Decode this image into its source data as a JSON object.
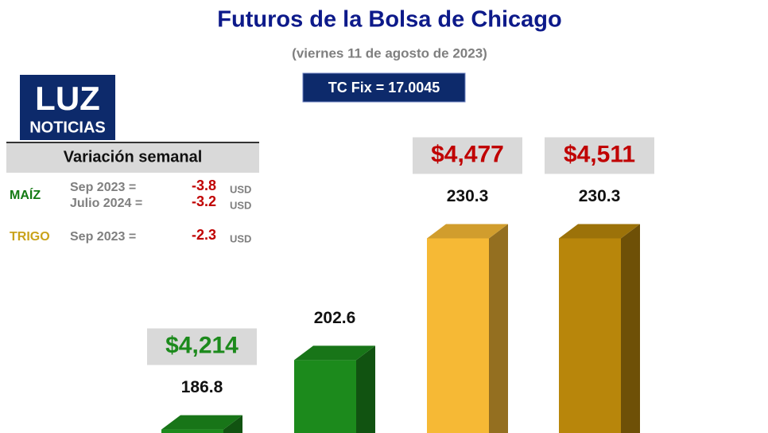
{
  "chart_data": {
    "type": "bar3d",
    "title": "Futuros de la Bolsa de Chicago",
    "subtitle": "(viernes 11 de agosto de 2023)",
    "exchange_rate": "TC Fix = 17.0045",
    "logo": {
      "top": "LUZ",
      "bottom": "NOTICIAS"
    },
    "weekly_variation": {
      "title": "Variación semanal",
      "rows": [
        {
          "crop": "MAÍZ",
          "crop_color": "#137a13",
          "contract": "Sep 2023 =",
          "value": -3.8,
          "unit": "USD"
        },
        {
          "crop": null,
          "crop_color": "#137a13",
          "contract": "Julio 2024 =",
          "value": -3.2,
          "unit": "USD"
        },
        {
          "crop": "TRIGO",
          "crop_color": "#c9a21a",
          "contract": "Sep 2023 =",
          "value": -2.3,
          "unit": "USD"
        }
      ]
    },
    "values": [
      186.8,
      202.6,
      230.3,
      230.3
    ],
    "colors": [
      "#1c8a1c",
      "#1c8a1c",
      "#f6b935",
      "#b8860b"
    ],
    "price_labels": [
      "$4,214",
      null,
      "$4,477",
      "$4,511"
    ],
    "price_colors": [
      "#1c8a1c",
      null,
      "#c00000",
      "#c00000"
    ],
    "ylim": [
      186,
      236
    ]
  }
}
